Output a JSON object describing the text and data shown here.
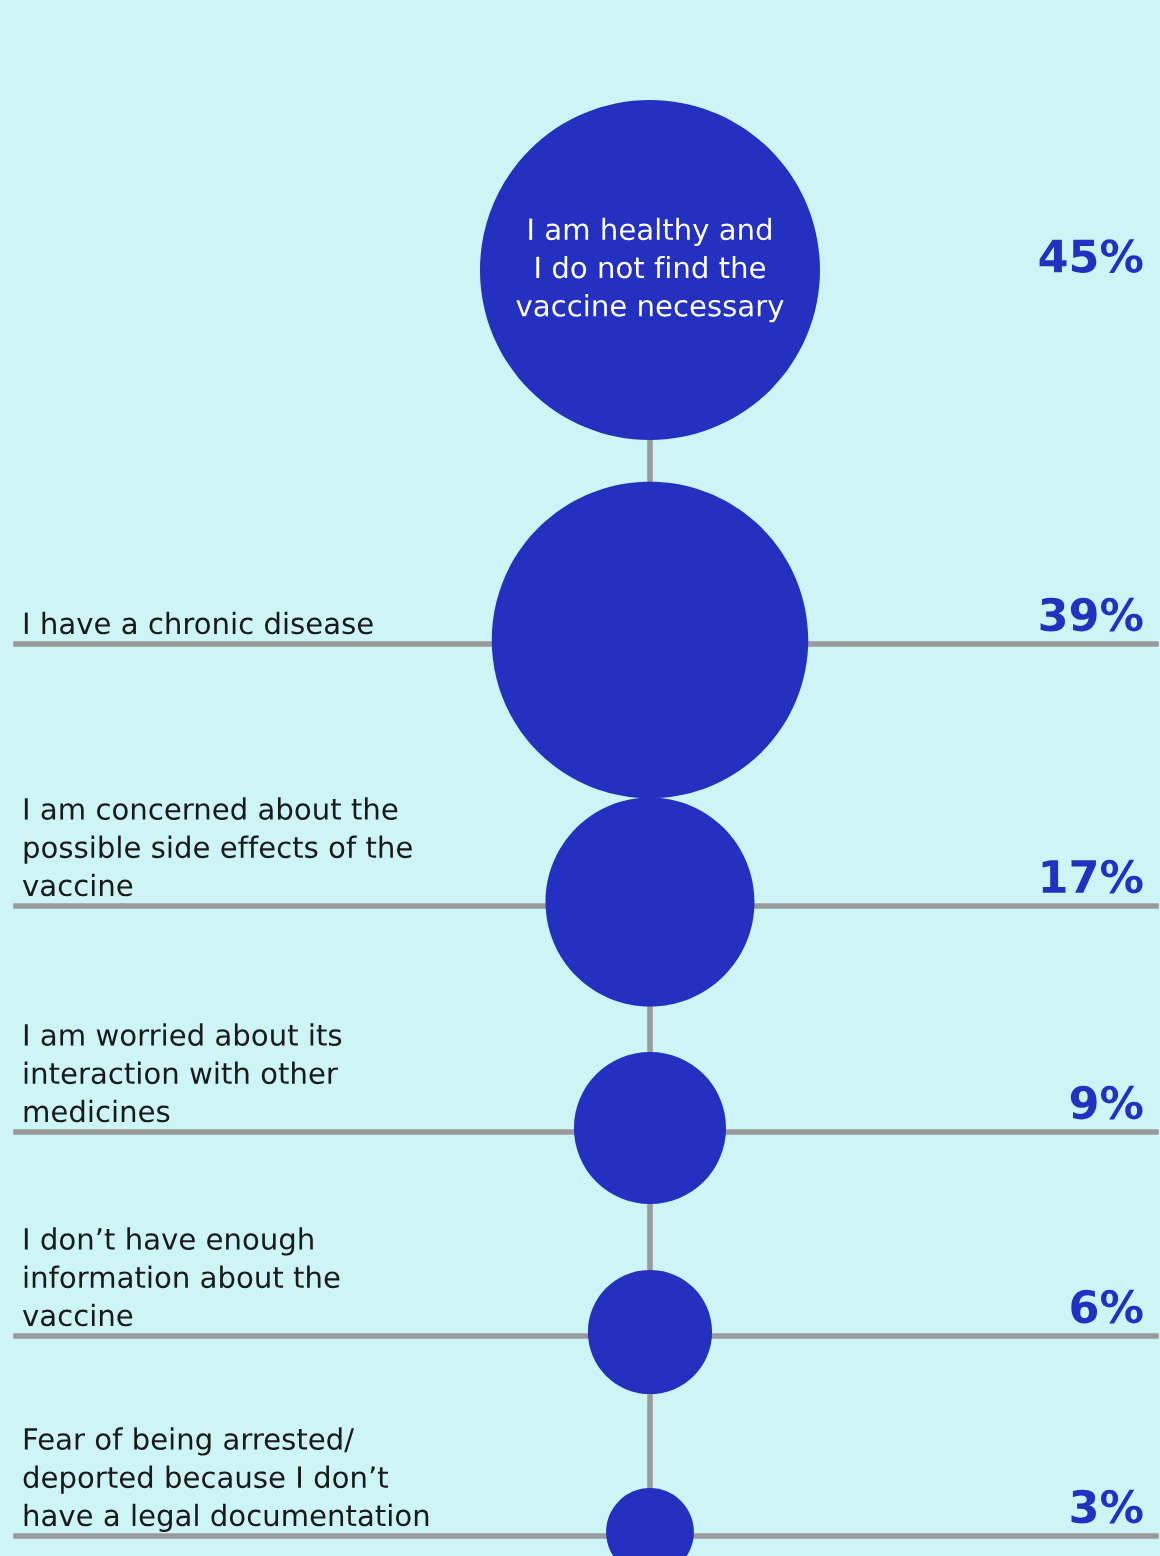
{
  "chart_data": {
    "type": "other",
    "categories": [
      "I am healthy and\nI do not find the\nvaccine necessary",
      "I have a chronic disease",
      "I am concerned about the\npossible side effects of the\nvaccine",
      "I am worried about its\ninteraction with other\nmedicines",
      "I don’t have enough\ninformation about the\nvaccine",
      "Fear of being arrested/\ndeported because I don’t\nhave a legal documentation"
    ],
    "values": [
      45,
      39,
      17,
      9,
      6,
      3
    ],
    "value_labels": [
      "45%",
      "39%",
      "17%",
      "9%",
      "6%",
      "3%"
    ],
    "color": "#2330c0"
  }
}
